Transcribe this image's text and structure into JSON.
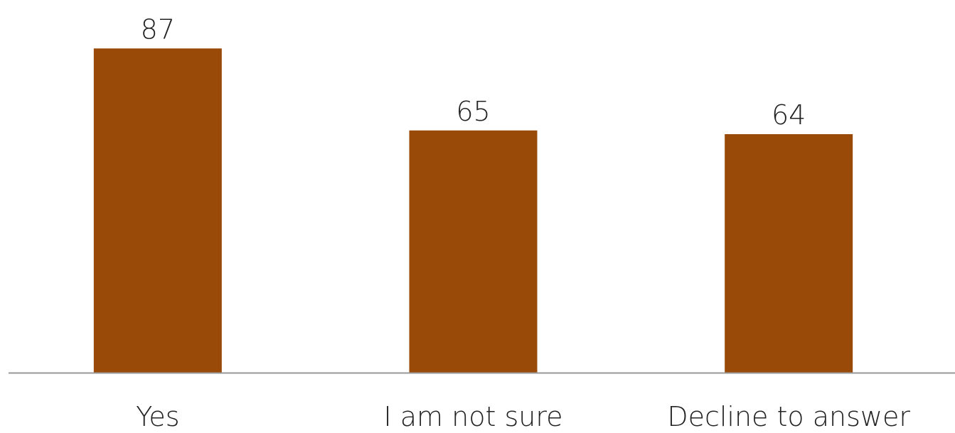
{
  "chart_data": {
    "type": "bar",
    "title": "",
    "xlabel": "",
    "ylabel": "",
    "categories": [
      "Yes",
      "I am not sure",
      "Decline to answer"
    ],
    "values": [
      87,
      65,
      64
    ],
    "ylim": [
      0,
      100
    ],
    "grid": false,
    "legend": "none",
    "colors": {
      "bar": "#9A4A08",
      "axis": "#999999"
    }
  }
}
